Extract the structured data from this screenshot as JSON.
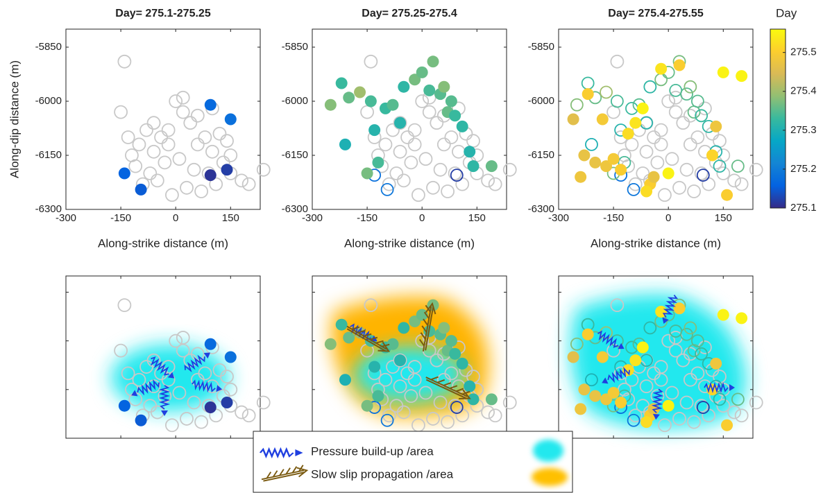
{
  "chart_data": [
    {
      "type": "scatter",
      "title": "Day= 275.1-275.25",
      "xlabel": "Along-strike distance (m)",
      "ylabel": "Along-dip distance (m)",
      "xlim": [
        -300,
        231
      ],
      "ylim": [
        -6300,
        -5800
      ],
      "xticks": [
        -300,
        -150,
        0,
        150
      ],
      "yticks": [
        -5850,
        -6000,
        -6150,
        -6300
      ],
      "series": [
        {
          "color": "#c8c8c8",
          "filled": false,
          "x": [
            -140,
            -150,
            -130,
            -120,
            -100,
            -80,
            -60,
            -40,
            -20,
            0,
            20,
            40,
            60,
            80,
            100,
            120,
            140,
            -110,
            -70,
            -30,
            10,
            50,
            90,
            130,
            -90,
            -50,
            -10,
            30,
            70,
            110,
            150,
            180,
            200,
            240,
            20,
            -20,
            60,
            100,
            -60,
            150
          ],
          "values": [
            -5890,
            -6030,
            -6100,
            -6150,
            -6120,
            -6080,
            -6060,
            -6100,
            -6120,
            -6000,
            -5990,
            -6060,
            -6120,
            -6100,
            -6140,
            -6090,
            -6110,
            -6180,
            -6200,
            -6170,
            -6160,
            -6190,
            -6200,
            -6170,
            -6230,
            -6220,
            -6260,
            -6240,
            -6250,
            -6230,
            -6200,
            -6220,
            -6230,
            -6190,
            -6030,
            -6080,
            -6040,
            -6020,
            -6140,
            -6150
          ]
        },
        {
          "filled": true,
          "x": [
            95,
            150,
            -140,
            -95,
            95,
            140
          ],
          "values": [
            -6010,
            -6050,
            -6200,
            -6245,
            -6205,
            -6190
          ],
          "day": [
            275.17,
            275.18,
            275.16,
            275.15,
            275.11,
            275.12
          ]
        }
      ]
    },
    {
      "type": "scatter",
      "title": "Day= 275.25-275.4",
      "xlabel": "Along-strike distance (m)",
      "xlim": [
        -300,
        231
      ],
      "ylim": [
        -6300,
        -5800
      ],
      "xticks": [
        -300,
        -150,
        0,
        150
      ],
      "yticks": [
        -5850,
        -6000,
        -6150,
        -6300
      ],
      "series": [
        {
          "color": "#c8c8c8",
          "filled": false,
          "x": [
            -140,
            -150,
            -130,
            -120,
            -100,
            -80,
            -60,
            -40,
            -20,
            0,
            20,
            40,
            60,
            80,
            100,
            120,
            140,
            -110,
            -70,
            -30,
            10,
            50,
            90,
            130,
            -90,
            -50,
            -10,
            30,
            70,
            110,
            150,
            180,
            200,
            240,
            20,
            -20,
            60,
            100,
            -60,
            150
          ],
          "values": [
            -5890,
            -6030,
            -6100,
            -6150,
            -6120,
            -6080,
            -6060,
            -6100,
            -6120,
            -6000,
            -5990,
            -6060,
            -6120,
            -6100,
            -6140,
            -6090,
            -6110,
            -6180,
            -6200,
            -6170,
            -6160,
            -6190,
            -6200,
            -6170,
            -6230,
            -6220,
            -6260,
            -6240,
            -6250,
            -6230,
            -6200,
            -6220,
            -6230,
            -6190,
            -6030,
            -6080,
            -6040,
            -6020,
            -6140,
            -6150
          ]
        },
        {
          "filled": false,
          "x": [
            -130,
            -95,
            95
          ],
          "values": [
            -6205,
            -6245,
            -6205
          ],
          "day": [
            275.18,
            275.19,
            275.12
          ]
        },
        {
          "filled": true,
          "x": [
            -250,
            -220,
            -200,
            -170,
            -140,
            -130,
            -100,
            -80,
            -50,
            -20,
            0,
            20,
            30,
            50,
            70,
            90,
            110,
            130,
            -210,
            -120,
            -150,
            80,
            140,
            190,
            60,
            -60
          ],
          "values": [
            -6010,
            -5950,
            -5990,
            -5975,
            -6000,
            -6080,
            -6020,
            -6010,
            -5960,
            -5940,
            -5920,
            -5970,
            -5890,
            -5980,
            -6030,
            -6040,
            -6070,
            -6140,
            -6120,
            -6170,
            -6200,
            -6000,
            -6180,
            -6180,
            -5960,
            -6060
          ],
          "day": [
            275.38,
            275.33,
            275.36,
            275.4,
            275.34,
            275.31,
            275.33,
            275.35,
            275.32,
            275.37,
            275.36,
            275.34,
            275.37,
            275.35,
            275.36,
            275.33,
            275.32,
            275.31,
            275.3,
            275.34,
            275.37,
            275.35,
            275.32,
            275.36,
            275.38,
            275.31
          ]
        }
      ]
    },
    {
      "type": "scatter",
      "title": "Day= 275.4-275.55",
      "xlabel": "Along-strike distance (m)",
      "xlim": [
        -300,
        231
      ],
      "ylim": [
        -6300,
        -5800
      ],
      "xticks": [
        -300,
        -150,
        0,
        150
      ],
      "yticks": [
        -5850,
        -6000,
        -6150,
        -6300
      ],
      "series": [
        {
          "color": "#c8c8c8",
          "filled": false,
          "x": [
            -140,
            -150,
            -130,
            -120,
            -100,
            -80,
            -60,
            -40,
            -20,
            0,
            20,
            40,
            60,
            80,
            100,
            120,
            140,
            -110,
            -70,
            -30,
            10,
            50,
            90,
            130,
            -90,
            -50,
            -10,
            30,
            70,
            110,
            150,
            180,
            200,
            240,
            20,
            -20,
            60,
            100,
            -60,
            150
          ],
          "values": [
            -5890,
            -6030,
            -6100,
            -6150,
            -6120,
            -6080,
            -6060,
            -6100,
            -6120,
            -6000,
            -5990,
            -6060,
            -6120,
            -6100,
            -6140,
            -6090,
            -6110,
            -6180,
            -6200,
            -6170,
            -6160,
            -6190,
            -6200,
            -6170,
            -6230,
            -6220,
            -6260,
            -6240,
            -6250,
            -6230,
            -6200,
            -6220,
            -6230,
            -6190,
            -6030,
            -6080,
            -6040,
            -6020,
            -6140,
            -6150
          ]
        },
        {
          "filled": false,
          "x": [
            -130,
            -95,
            95
          ],
          "values": [
            -6205,
            -6245,
            -6205
          ],
          "day": [
            275.18,
            275.19,
            275.12
          ]
        },
        {
          "filled": false,
          "x": [
            -250,
            -220,
            -200,
            -170,
            -140,
            -130,
            -100,
            -80,
            -50,
            -20,
            0,
            20,
            30,
            50,
            70,
            90,
            110,
            130,
            -210,
            -120,
            -150,
            80,
            140,
            190,
            60,
            -60
          ],
          "values": [
            -6010,
            -5950,
            -5990,
            -5975,
            -6000,
            -6080,
            -6020,
            -6010,
            -5960,
            -5940,
            -5920,
            -5970,
            -5890,
            -5980,
            -6030,
            -6040,
            -6070,
            -6140,
            -6120,
            -6170,
            -6200,
            -6000,
            -6180,
            -6180,
            -5960,
            -6060
          ],
          "day": [
            275.38,
            275.33,
            275.36,
            275.4,
            275.34,
            275.31,
            275.33,
            275.35,
            275.32,
            275.37,
            275.36,
            275.34,
            275.37,
            275.35,
            275.36,
            275.33,
            275.32,
            275.31,
            275.3,
            275.34,
            275.37,
            275.35,
            275.32,
            275.36,
            275.38,
            275.31
          ]
        },
        {
          "filled": true,
          "x": [
            -260,
            -220,
            -200,
            -170,
            -150,
            -130,
            -110,
            -90,
            -70,
            -50,
            -40,
            -20,
            0,
            30,
            130,
            160,
            200,
            -230,
            -180,
            -60,
            150,
            120,
            -240
          ],
          "values": [
            -6050,
            -5980,
            -6170,
            -6180,
            -6160,
            -6190,
            -6090,
            -6060,
            -6020,
            -6230,
            -6210,
            -5910,
            -6200,
            -5900,
            -6070,
            -6260,
            -5930,
            -6150,
            -6050,
            -6250,
            -5920,
            -6150,
            -6210
          ],
          "day": [
            275.46,
            275.5,
            275.47,
            275.48,
            275.49,
            275.5,
            275.52,
            275.53,
            275.55,
            275.5,
            275.47,
            275.53,
            275.55,
            275.5,
            275.48,
            275.5,
            275.55,
            275.47,
            275.49,
            275.52,
            275.55,
            275.51,
            275.48
          ]
        }
      ]
    }
  ],
  "colorbar": {
    "title": "Day",
    "lim": [
      275.1,
      275.56
    ],
    "ticks": [
      275.1,
      275.2,
      275.3,
      275.4,
      275.5
    ],
    "colormap": [
      "#352a87",
      "#0363e1",
      "#1485d4",
      "#06a7c6",
      "#38b99e",
      "#92bf73",
      "#d9ba56",
      "#fcce2e",
      "#f9fb0e"
    ]
  },
  "legend": {
    "items": [
      "Pressure build-up /area",
      "Slow slip propagation /area"
    ]
  }
}
